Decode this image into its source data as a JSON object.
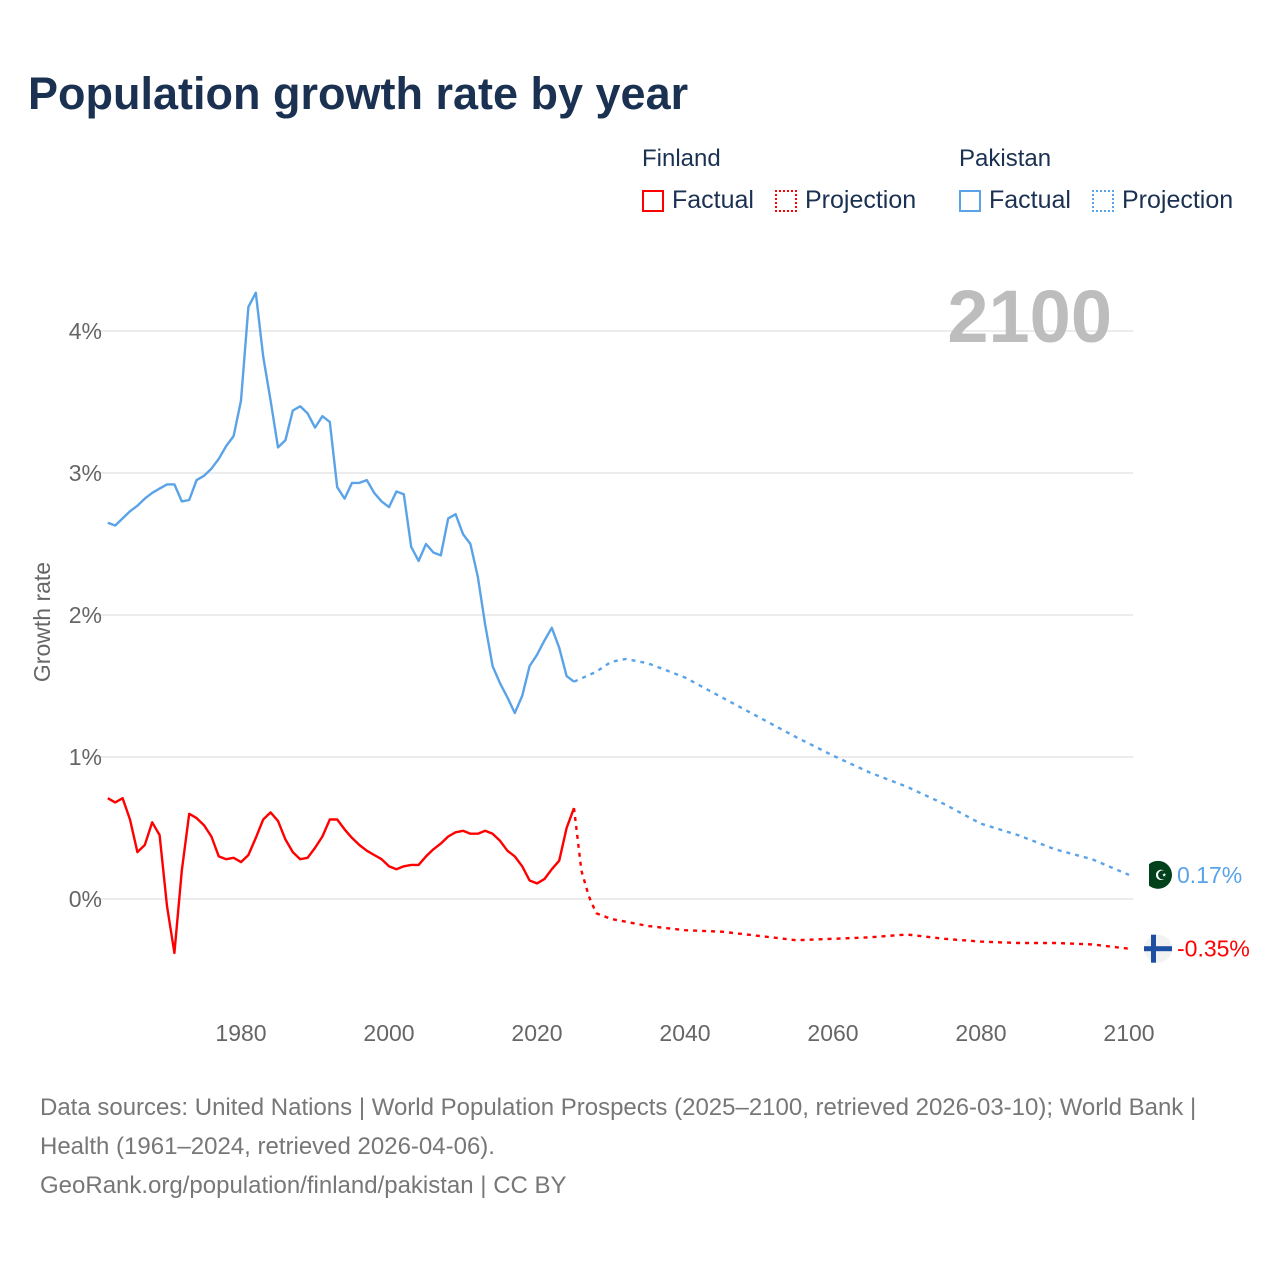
{
  "title": "Population growth rate by year",
  "legend": {
    "groups": [
      {
        "name": "Finland",
        "factual_label": "Factual",
        "projection_label": "Projection",
        "color": "#ff0000"
      },
      {
        "name": "Pakistan",
        "factual_label": "Factual",
        "projection_label": "Projection",
        "color": "#5aa3e8"
      }
    ]
  },
  "year_overlay": "2100",
  "source": {
    "line1": "Data sources: United Nations | World Population Prospects (2025–2100, retrieved 2026-03-10); World Bank | Health (1961–2024, retrieved 2026-04-06).",
    "line2": "GeoRank.org/population/finland/pakistan | CC BY"
  },
  "chart_data": {
    "type": "line",
    "title": "Population growth rate by year",
    "xlabel": "",
    "ylabel": "Growth rate",
    "xlim": [
      1962,
      2100
    ],
    "ylim": [
      -0.5,
      4.3
    ],
    "x_ticks": [
      1980,
      2000,
      2020,
      2040,
      2060,
      2080,
      2100
    ],
    "x_tick_labels": [
      "1980",
      "2000",
      "2020",
      "2040",
      "2060",
      "2080",
      "2100"
    ],
    "y_ticks": [
      0,
      1,
      2,
      3,
      4
    ],
    "y_tick_labels": [
      "0%",
      "1%",
      "2%",
      "3%",
      "4%"
    ],
    "grid": true,
    "legend_position": "top-right",
    "series": [
      {
        "name": "Finland",
        "kind": "factual",
        "color": "#ff0000",
        "style": "solid",
        "start_year": 1962,
        "values": [
          0.71,
          0.68,
          0.71,
          0.56,
          0.33,
          0.38,
          0.54,
          0.45,
          -0.05,
          -0.38,
          0.2,
          0.6,
          0.57,
          0.52,
          0.44,
          0.3,
          0.28,
          0.29,
          0.26,
          0.31,
          0.43,
          0.56,
          0.61,
          0.55,
          0.42,
          0.33,
          0.28,
          0.29,
          0.36,
          0.44,
          0.56,
          0.56,
          0.49,
          0.43,
          0.38,
          0.34,
          0.31,
          0.28,
          0.23,
          0.21,
          0.23,
          0.24,
          0.24,
          0.3,
          0.35,
          0.39,
          0.44,
          0.47,
          0.48,
          0.46,
          0.46,
          0.48,
          0.46,
          0.41,
          0.34,
          0.3,
          0.23,
          0.13,
          0.11,
          0.14,
          0.21,
          0.27,
          0.5,
          0.64
        ]
      },
      {
        "name": "Finland",
        "kind": "projection",
        "color": "#ff0000",
        "style": "dotted",
        "x": [
          2025,
          2026,
          2027,
          2028,
          2030,
          2035,
          2040,
          2045,
          2050,
          2055,
          2060,
          2065,
          2070,
          2075,
          2080,
          2085,
          2090,
          2095,
          2100
        ],
        "values": [
          0.64,
          0.2,
          0.02,
          -0.1,
          -0.14,
          -0.19,
          -0.22,
          -0.23,
          -0.26,
          -0.29,
          -0.28,
          -0.27,
          -0.25,
          -0.28,
          -0.3,
          -0.31,
          -0.31,
          -0.32,
          -0.35
        ]
      },
      {
        "name": "Pakistan",
        "kind": "factual",
        "color": "#5aa3e8",
        "style": "solid",
        "start_year": 1962,
        "values": [
          2.65,
          2.63,
          2.68,
          2.73,
          2.77,
          2.82,
          2.86,
          2.89,
          2.92,
          2.92,
          2.8,
          2.81,
          2.95,
          2.98,
          3.03,
          3.1,
          3.19,
          3.26,
          3.51,
          4.17,
          4.27,
          3.82,
          3.51,
          3.18,
          3.23,
          3.44,
          3.47,
          3.42,
          3.32,
          3.4,
          3.36,
          2.9,
          2.82,
          2.93,
          2.93,
          2.95,
          2.86,
          2.8,
          2.76,
          2.87,
          2.85,
          2.48,
          2.38,
          2.5,
          2.44,
          2.42,
          2.68,
          2.71,
          2.57,
          2.5,
          2.27,
          1.93,
          1.64,
          1.52,
          1.42,
          1.31,
          1.43,
          1.64,
          1.72,
          1.82,
          1.91,
          1.77,
          1.57,
          1.53
        ]
      },
      {
        "name": "Pakistan",
        "kind": "projection",
        "color": "#5aa3e8",
        "style": "dotted",
        "x": [
          2025,
          2028,
          2030,
          2032,
          2035,
          2040,
          2045,
          2050,
          2055,
          2060,
          2065,
          2070,
          2075,
          2080,
          2085,
          2090,
          2095,
          2100
        ],
        "values": [
          1.53,
          1.6,
          1.67,
          1.69,
          1.66,
          1.56,
          1.42,
          1.28,
          1.14,
          1.01,
          0.89,
          0.79,
          0.67,
          0.53,
          0.45,
          0.35,
          0.28,
          0.17
        ]
      }
    ],
    "end_labels": [
      {
        "name": "Pakistan",
        "value_label": "0.17%",
        "color": "#5aa3e8",
        "icon": "pakistan-flag"
      },
      {
        "name": "Finland",
        "value_label": "-0.35%",
        "color": "#ff0000",
        "icon": "finland-flag"
      }
    ]
  }
}
